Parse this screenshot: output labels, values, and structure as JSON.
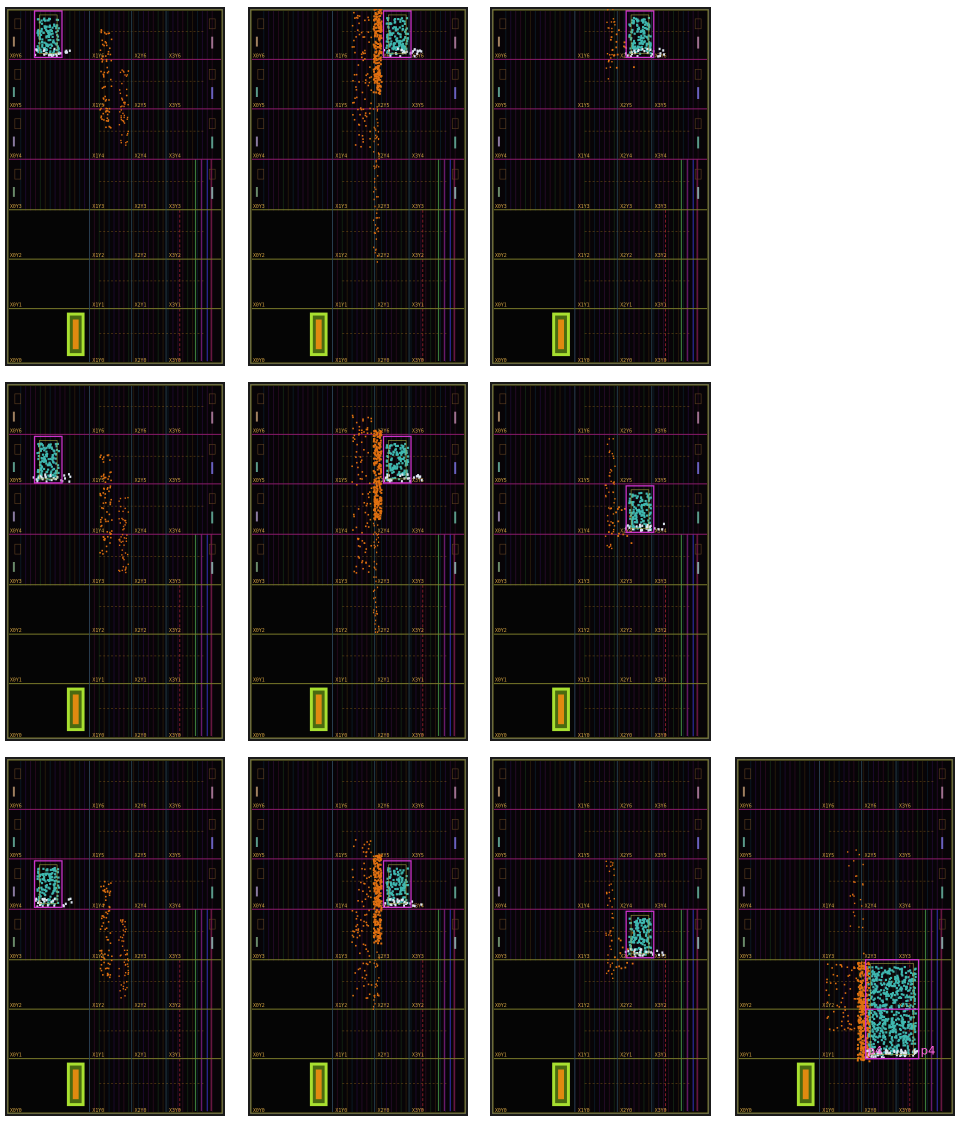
{
  "clock_region_labels": {
    "x0": [
      "X0Y6",
      "X0Y5",
      "X0Y4",
      "X0Y3",
      "X0Y2",
      "X0Y1",
      "X0Y0"
    ],
    "x1": [
      "X1Y6",
      "X1Y5",
      "X1Y4",
      "X1Y3",
      "X1Y2",
      "X1Y1",
      "X1Y0"
    ],
    "x2": [
      "X2Y6",
      "X2Y5",
      "X2Y4",
      "X2Y3",
      "X2Y2",
      "X2Y1",
      "X2Y0"
    ],
    "x3": [
      "X3Y6",
      "X3Y5",
      "X3Y4",
      "X3Y3",
      "X3Y2",
      "X3Y1",
      "X3Y0"
    ]
  },
  "pblock_labels": [
    "p4",
    "p4"
  ],
  "colors": {
    "background": "#070407",
    "pblock": "#cc33cc",
    "cell_cyan": "#3fb8b0",
    "cell_orange": "#e07010",
    "cell_white": "#dde6f0",
    "io_bank_fill": "#e08a10",
    "io_bank_border": "#a8e030",
    "region_grid": "#8a1a6a"
  },
  "panels": [
    {
      "id": "r1c1",
      "pblock": {
        "col": 0,
        "row": 0
      },
      "orange": "sparse-left"
    },
    {
      "id": "r1c2",
      "pblock": {
        "col": 2,
        "row": 0
      },
      "orange": "dense-column"
    },
    {
      "id": "r1c3",
      "pblock": {
        "col": 2,
        "row": 0
      },
      "orange": "sparse-mid"
    },
    {
      "id": "r2c1",
      "pblock": {
        "col": 0,
        "row": 1
      },
      "orange": "sparse-left"
    },
    {
      "id": "r2c2",
      "pblock": {
        "col": 2,
        "row": 1
      },
      "orange": "dense-column"
    },
    {
      "id": "r2c3",
      "pblock": {
        "col": 2,
        "row": 2
      },
      "orange": "sparse-mid"
    },
    {
      "id": "r3c1",
      "pblock": {
        "col": 0,
        "row": 2
      },
      "orange": "sparse-left"
    },
    {
      "id": "r3c2",
      "pblock": {
        "col": 2,
        "row": 2
      },
      "orange": "dense-column"
    },
    {
      "id": "r3c3",
      "pblock": {
        "col": 2,
        "row": 3
      },
      "orange": "sparse-mid"
    },
    {
      "id": "r3c4",
      "pblock": {
        "col": 2,
        "row": 4,
        "big": true
      },
      "orange": "dense-block"
    }
  ]
}
